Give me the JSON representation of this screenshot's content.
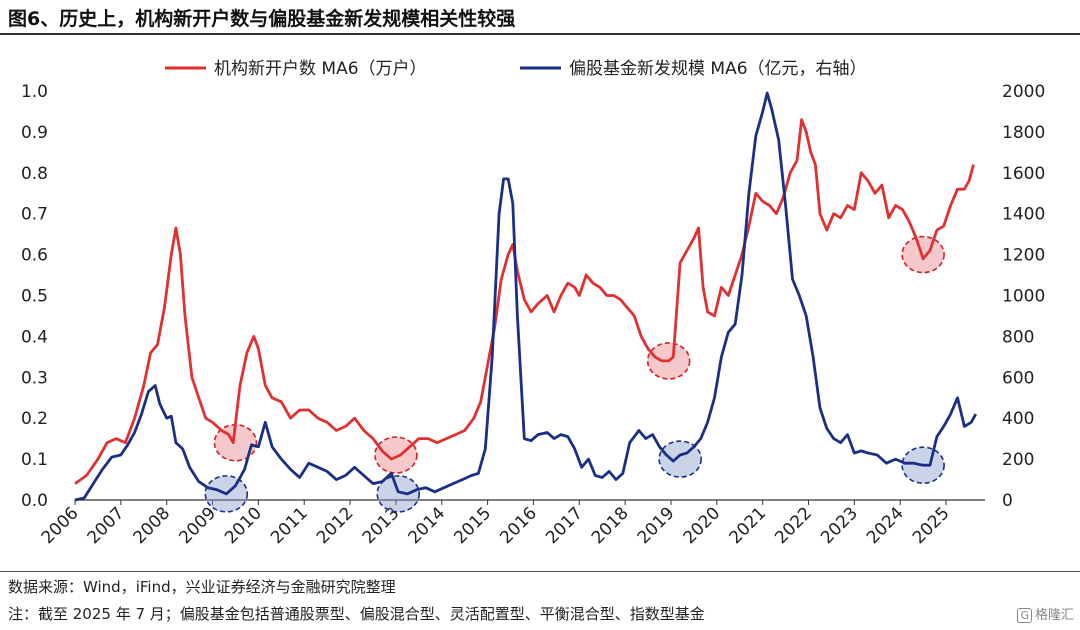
{
  "header": {
    "title": "图6、历史上，机构新开户数与偏股基金新发规模相关性较强"
  },
  "footer": {
    "source": "数据来源：Wind，iFind，兴业证券经济与金融研究院整理",
    "note": "注：截至 2025 年 7 月；偏股基金包括普通股票型、偏股混合型、灵活配置型、平衡混合型、指数型基金"
  },
  "watermark": {
    "icon": "ge-logo-icon",
    "text": "格隆汇",
    "box": "G"
  },
  "chart_data": {
    "type": "line",
    "y_left": {
      "min": 0,
      "max": 1.0,
      "ticks": [
        "0.0",
        "0.1",
        "0.2",
        "0.3",
        "0.4",
        "0.5",
        "0.6",
        "0.7",
        "0.8",
        "0.9",
        "1.0"
      ]
    },
    "y_right": {
      "min": 0,
      "max": 2000,
      "ticks": [
        "0",
        "200",
        "400",
        "600",
        "800",
        "1000",
        "1200",
        "1400",
        "1600",
        "1800",
        "2000"
      ]
    },
    "x_range": [
      2006,
      2025.85
    ],
    "x_ticks": [
      "2006",
      "2007",
      "2008",
      "2009",
      "2010",
      "2011",
      "2012",
      "2013",
      "2014",
      "2015",
      "2016",
      "2017",
      "2018",
      "2019",
      "2020",
      "2021",
      "2022",
      "2023",
      "2024",
      "2025"
    ],
    "grid": false,
    "legend_position": "top",
    "series": [
      {
        "name": "机构新开户数 MA6（万户）",
        "axis": "left",
        "color": "#e03030",
        "points": [
          [
            2006.0,
            0.04
          ],
          [
            2006.25,
            0.06
          ],
          [
            2006.5,
            0.1
          ],
          [
            2006.7,
            0.14
          ],
          [
            2006.9,
            0.15
          ],
          [
            2007.1,
            0.14
          ],
          [
            2007.3,
            0.2
          ],
          [
            2007.5,
            0.28
          ],
          [
            2007.65,
            0.36
          ],
          [
            2007.8,
            0.38
          ],
          [
            2007.95,
            0.47
          ],
          [
            2008.1,
            0.6
          ],
          [
            2008.2,
            0.665
          ],
          [
            2008.3,
            0.6
          ],
          [
            2008.4,
            0.45
          ],
          [
            2008.55,
            0.3
          ],
          [
            2008.7,
            0.25
          ],
          [
            2008.85,
            0.2
          ],
          [
            2009.0,
            0.19
          ],
          [
            2009.2,
            0.17
          ],
          [
            2009.35,
            0.16
          ],
          [
            2009.45,
            0.14
          ],
          [
            2009.6,
            0.28
          ],
          [
            2009.75,
            0.36
          ],
          [
            2009.9,
            0.4
          ],
          [
            2010.0,
            0.37
          ],
          [
            2010.15,
            0.28
          ],
          [
            2010.3,
            0.25
          ],
          [
            2010.5,
            0.24
          ],
          [
            2010.7,
            0.2
          ],
          [
            2010.9,
            0.22
          ],
          [
            2011.1,
            0.22
          ],
          [
            2011.3,
            0.2
          ],
          [
            2011.5,
            0.19
          ],
          [
            2011.7,
            0.17
          ],
          [
            2011.9,
            0.18
          ],
          [
            2012.1,
            0.2
          ],
          [
            2012.3,
            0.17
          ],
          [
            2012.5,
            0.15
          ],
          [
            2012.7,
            0.12
          ],
          [
            2012.9,
            0.1
          ],
          [
            2013.1,
            0.11
          ],
          [
            2013.3,
            0.13
          ],
          [
            2013.5,
            0.15
          ],
          [
            2013.7,
            0.15
          ],
          [
            2013.9,
            0.14
          ],
          [
            2014.1,
            0.15
          ],
          [
            2014.3,
            0.16
          ],
          [
            2014.5,
            0.17
          ],
          [
            2014.7,
            0.2
          ],
          [
            2014.85,
            0.24
          ],
          [
            2015.0,
            0.33
          ],
          [
            2015.15,
            0.42
          ],
          [
            2015.3,
            0.54
          ],
          [
            2015.45,
            0.6
          ],
          [
            2015.55,
            0.625
          ],
          [
            2015.65,
            0.56
          ],
          [
            2015.8,
            0.49
          ],
          [
            2015.95,
            0.46
          ],
          [
            2016.1,
            0.48
          ],
          [
            2016.3,
            0.5
          ],
          [
            2016.45,
            0.46
          ],
          [
            2016.6,
            0.5
          ],
          [
            2016.75,
            0.53
          ],
          [
            2016.9,
            0.52
          ],
          [
            2017.0,
            0.5
          ],
          [
            2017.15,
            0.55
          ],
          [
            2017.3,
            0.53
          ],
          [
            2017.45,
            0.52
          ],
          [
            2017.6,
            0.5
          ],
          [
            2017.75,
            0.5
          ],
          [
            2017.9,
            0.49
          ],
          [
            2018.05,
            0.47
          ],
          [
            2018.2,
            0.45
          ],
          [
            2018.35,
            0.4
          ],
          [
            2018.5,
            0.37
          ],
          [
            2018.65,
            0.35
          ],
          [
            2018.8,
            0.34
          ],
          [
            2018.95,
            0.34
          ],
          [
            2019.05,
            0.35
          ],
          [
            2019.2,
            0.58
          ],
          [
            2019.35,
            0.61
          ],
          [
            2019.5,
            0.64
          ],
          [
            2019.6,
            0.665
          ],
          [
            2019.7,
            0.52
          ],
          [
            2019.8,
            0.46
          ],
          [
            2019.95,
            0.45
          ],
          [
            2020.1,
            0.52
          ],
          [
            2020.25,
            0.5
          ],
          [
            2020.4,
            0.55
          ],
          [
            2020.55,
            0.6
          ],
          [
            2020.7,
            0.67
          ],
          [
            2020.85,
            0.75
          ],
          [
            2021.0,
            0.73
          ],
          [
            2021.15,
            0.72
          ],
          [
            2021.3,
            0.7
          ],
          [
            2021.45,
            0.74
          ],
          [
            2021.6,
            0.8
          ],
          [
            2021.75,
            0.83
          ],
          [
            2021.85,
            0.93
          ],
          [
            2021.95,
            0.9
          ],
          [
            2022.05,
            0.85
          ],
          [
            2022.15,
            0.82
          ],
          [
            2022.25,
            0.7
          ],
          [
            2022.4,
            0.66
          ],
          [
            2022.55,
            0.7
          ],
          [
            2022.7,
            0.69
          ],
          [
            2022.85,
            0.72
          ],
          [
            2023.0,
            0.71
          ],
          [
            2023.15,
            0.8
          ],
          [
            2023.3,
            0.78
          ],
          [
            2023.45,
            0.75
          ],
          [
            2023.6,
            0.77
          ],
          [
            2023.75,
            0.69
          ],
          [
            2023.9,
            0.72
          ],
          [
            2024.05,
            0.71
          ],
          [
            2024.2,
            0.68
          ],
          [
            2024.35,
            0.64
          ],
          [
            2024.5,
            0.59
          ],
          [
            2024.65,
            0.61
          ],
          [
            2024.8,
            0.66
          ],
          [
            2024.95,
            0.67
          ],
          [
            2025.1,
            0.72
          ],
          [
            2025.25,
            0.76
          ],
          [
            2025.4,
            0.76
          ],
          [
            2025.5,
            0.78
          ],
          [
            2025.6,
            0.82
          ]
        ]
      },
      {
        "name": "偏股基金新发规模 MA6（亿元，右轴）",
        "axis": "right",
        "color": "#1a2f86",
        "points": [
          [
            2006.0,
            0
          ],
          [
            2006.2,
            10
          ],
          [
            2006.4,
            80
          ],
          [
            2006.6,
            150
          ],
          [
            2006.8,
            210
          ],
          [
            2007.0,
            220
          ],
          [
            2007.15,
            270
          ],
          [
            2007.3,
            330
          ],
          [
            2007.45,
            420
          ],
          [
            2007.6,
            530
          ],
          [
            2007.75,
            560
          ],
          [
            2007.85,
            470
          ],
          [
            2008.0,
            400
          ],
          [
            2008.1,
            410
          ],
          [
            2008.2,
            280
          ],
          [
            2008.35,
            250
          ],
          [
            2008.5,
            160
          ],
          [
            2008.7,
            90
          ],
          [
            2008.9,
            60
          ],
          [
            2009.1,
            50
          ],
          [
            2009.3,
            30
          ],
          [
            2009.5,
            70
          ],
          [
            2009.7,
            150
          ],
          [
            2009.85,
            270
          ],
          [
            2010.0,
            260
          ],
          [
            2010.15,
            380
          ],
          [
            2010.3,
            260
          ],
          [
            2010.5,
            200
          ],
          [
            2010.7,
            150
          ],
          [
            2010.9,
            110
          ],
          [
            2011.1,
            180
          ],
          [
            2011.3,
            160
          ],
          [
            2011.5,
            140
          ],
          [
            2011.7,
            100
          ],
          [
            2011.9,
            120
          ],
          [
            2012.1,
            160
          ],
          [
            2012.3,
            120
          ],
          [
            2012.5,
            80
          ],
          [
            2012.7,
            90
          ],
          [
            2012.9,
            130
          ],
          [
            2013.05,
            40
          ],
          [
            2013.25,
            30
          ],
          [
            2013.45,
            50
          ],
          [
            2013.65,
            60
          ],
          [
            2013.85,
            40
          ],
          [
            2014.05,
            60
          ],
          [
            2014.25,
            80
          ],
          [
            2014.45,
            100
          ],
          [
            2014.65,
            120
          ],
          [
            2014.8,
            130
          ],
          [
            2014.95,
            250
          ],
          [
            2015.1,
            700
          ],
          [
            2015.25,
            1400
          ],
          [
            2015.35,
            1570
          ],
          [
            2015.45,
            1570
          ],
          [
            2015.55,
            1450
          ],
          [
            2015.65,
            900
          ],
          [
            2015.8,
            300
          ],
          [
            2015.95,
            290
          ],
          [
            2016.1,
            320
          ],
          [
            2016.3,
            330
          ],
          [
            2016.45,
            300
          ],
          [
            2016.6,
            320
          ],
          [
            2016.75,
            310
          ],
          [
            2016.9,
            250
          ],
          [
            2017.05,
            160
          ],
          [
            2017.2,
            200
          ],
          [
            2017.35,
            120
          ],
          [
            2017.5,
            110
          ],
          [
            2017.65,
            140
          ],
          [
            2017.8,
            100
          ],
          [
            2017.95,
            130
          ],
          [
            2018.1,
            280
          ],
          [
            2018.3,
            340
          ],
          [
            2018.45,
            300
          ],
          [
            2018.6,
            320
          ],
          [
            2018.75,
            260
          ],
          [
            2018.9,
            220
          ],
          [
            2019.05,
            190
          ],
          [
            2019.2,
            220
          ],
          [
            2019.35,
            230
          ],
          [
            2019.5,
            260
          ],
          [
            2019.65,
            300
          ],
          [
            2019.8,
            380
          ],
          [
            2019.95,
            500
          ],
          [
            2020.1,
            700
          ],
          [
            2020.25,
            820
          ],
          [
            2020.4,
            860
          ],
          [
            2020.55,
            1100
          ],
          [
            2020.7,
            1500
          ],
          [
            2020.85,
            1780
          ],
          [
            2021.0,
            1900
          ],
          [
            2021.1,
            1990
          ],
          [
            2021.2,
            1910
          ],
          [
            2021.35,
            1760
          ],
          [
            2021.5,
            1440
          ],
          [
            2021.65,
            1080
          ],
          [
            2021.8,
            1000
          ],
          [
            2021.95,
            900
          ],
          [
            2022.1,
            700
          ],
          [
            2022.25,
            450
          ],
          [
            2022.4,
            350
          ],
          [
            2022.55,
            300
          ],
          [
            2022.7,
            280
          ],
          [
            2022.85,
            320
          ],
          [
            2023.0,
            230
          ],
          [
            2023.15,
            240
          ],
          [
            2023.3,
            230
          ],
          [
            2023.5,
            220
          ],
          [
            2023.7,
            180
          ],
          [
            2023.9,
            200
          ],
          [
            2024.1,
            180
          ],
          [
            2024.3,
            180
          ],
          [
            2024.5,
            170
          ],
          [
            2024.65,
            170
          ],
          [
            2024.8,
            310
          ],
          [
            2024.95,
            360
          ],
          [
            2025.1,
            420
          ],
          [
            2025.25,
            500
          ],
          [
            2025.4,
            360
          ],
          [
            2025.55,
            380
          ],
          [
            2025.65,
            420
          ]
        ]
      }
    ],
    "highlights": [
      {
        "x": 2009.5,
        "y": 0.14,
        "axis": "left",
        "color": "red"
      },
      {
        "x": 2013.0,
        "y": 0.11,
        "axis": "left",
        "color": "red"
      },
      {
        "x": 2018.95,
        "y": 0.34,
        "axis": "left",
        "color": "red"
      },
      {
        "x": 2024.5,
        "y": 0.6,
        "axis": "left",
        "color": "red"
      },
      {
        "x": 2009.3,
        "y": 30,
        "axis": "right",
        "color": "blue"
      },
      {
        "x": 2013.05,
        "y": 30,
        "axis": "right",
        "color": "blue"
      },
      {
        "x": 2019.2,
        "y": 200,
        "axis": "right",
        "color": "blue"
      },
      {
        "x": 2024.5,
        "y": 170,
        "axis": "right",
        "color": "blue"
      }
    ]
  }
}
